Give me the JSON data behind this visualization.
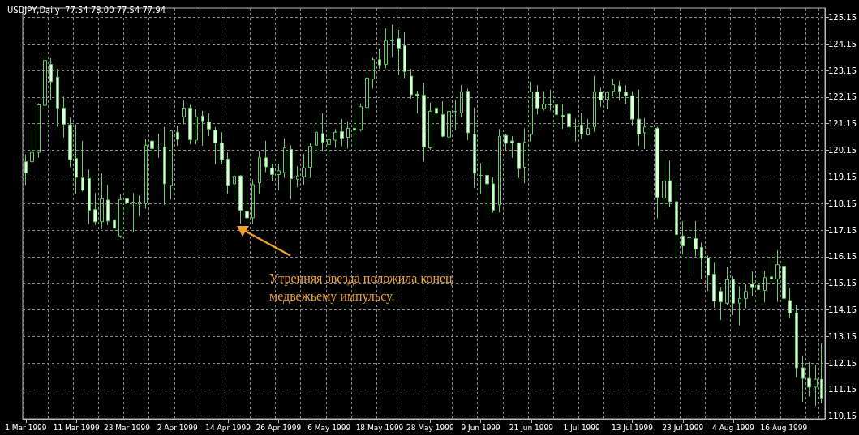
{
  "chart_data": {
    "type": "candlestick",
    "title": "USDJPY,Daily  77.54 78.00 77.54 77.94",
    "color": "#66cc66",
    "grid": true,
    "annotations": [
      "Утренняя звезда положила конец\nмедвежьему импульсу."
    ],
    "ylim": [
      110.05,
      125.5
    ],
    "yticks": [
      110.15,
      111.15,
      112.15,
      113.15,
      114.15,
      115.15,
      116.15,
      117.15,
      118.15,
      119.15,
      120.15,
      121.15,
      122.15,
      123.15,
      124.15,
      125.15
    ],
    "categories": [
      "1 Mar 1999",
      null,
      null,
      null,
      null,
      null,
      null,
      null,
      "11 Mar 1999",
      null,
      null,
      null,
      null,
      null,
      null,
      null,
      "23 Mar 1999",
      null,
      null,
      null,
      null,
      null,
      null,
      null,
      "2 Apr 1999",
      null,
      null,
      null,
      null,
      null,
      null,
      null,
      "14 Apr 1999",
      null,
      null,
      null,
      null,
      null,
      null,
      null,
      "26 Apr 1999",
      null,
      null,
      null,
      null,
      null,
      null,
      null,
      "6 May 1999",
      null,
      null,
      null,
      null,
      null,
      null,
      null,
      "18 May 1999",
      null,
      null,
      null,
      null,
      null,
      null,
      null,
      "28 May 1999",
      null,
      null,
      null,
      null,
      null,
      null,
      null,
      "9 Jun 1999",
      null,
      null,
      null,
      null,
      null,
      null,
      null,
      "21 Jun 1999",
      null,
      null,
      null,
      null,
      null,
      null,
      null,
      "1 Jul 1999",
      null,
      null,
      null,
      null,
      null,
      null,
      null,
      "13 Jul 1999",
      null,
      null,
      null,
      null,
      null,
      null,
      null,
      "23 Jul 1999",
      null,
      null,
      null,
      null,
      null,
      null,
      null,
      "4 Aug 1999",
      null,
      null,
      null,
      null,
      null,
      null,
      null,
      "16 Aug 1999",
      null,
      null,
      null,
      null,
      null,
      null
    ],
    "ohlc": [
      [
        119.72,
        120.0,
        118.85,
        119.3
      ],
      [
        119.72,
        120.93,
        119.7,
        120.07
      ],
      [
        120.07,
        121.92,
        119.87,
        121.86
      ],
      [
        121.84,
        123.82,
        121.76,
        123.53
      ],
      [
        123.38,
        123.64,
        122.05,
        122.73
      ],
      [
        122.9,
        123.21,
        121.03,
        121.74
      ],
      [
        121.74,
        122.17,
        120.63,
        121.13
      ],
      [
        121.11,
        121.39,
        119.51,
        119.8
      ],
      [
        119.84,
        121.13,
        118.5,
        119.13
      ],
      [
        119.11,
        120.51,
        118.6,
        118.65
      ],
      [
        119.09,
        119.43,
        117.37,
        117.9
      ],
      [
        117.92,
        118.55,
        117.34,
        117.46
      ],
      [
        117.46,
        119.29,
        117.19,
        118.32
      ],
      [
        118.28,
        118.86,
        117.34,
        117.49
      ],
      [
        117.52,
        117.84,
        116.83,
        117.22
      ],
      [
        116.93,
        118.5,
        116.86,
        118.3
      ],
      [
        118.33,
        118.93,
        117.77,
        118.18
      ],
      [
        118.2,
        118.55,
        117.08,
        118.2
      ],
      [
        118.13,
        118.45,
        117.66,
        118.2
      ],
      [
        118.17,
        120.58,
        117.95,
        120.34
      ],
      [
        120.5,
        120.58,
        119.54,
        120.22
      ],
      [
        120.27,
        120.78,
        119.87,
        120.27
      ],
      [
        120.27,
        121.03,
        118.1,
        118.89
      ],
      [
        118.83,
        120.93,
        118.3,
        120.88
      ],
      [
        120.83,
        121.08,
        120.32,
        120.56
      ],
      [
        121.41,
        122.04,
        121.13,
        121.74
      ],
      [
        121.74,
        121.86,
        120.37,
        120.55
      ],
      [
        120.53,
        121.69,
        120.37,
        121.41
      ],
      [
        121.44,
        121.64,
        120.32,
        121.26
      ],
      [
        121.21,
        121.54,
        120.68,
        120.95
      ],
      [
        120.91,
        121.03,
        119.62,
        120.43
      ],
      [
        120.43,
        120.83,
        119.62,
        119.8
      ],
      [
        119.82,
        120.07,
        118.5,
        118.83
      ],
      [
        118.89,
        119.51,
        118.28,
        119.18
      ],
      [
        119.19,
        119.21,
        117.39,
        117.9
      ],
      [
        117.85,
        118.55,
        117.44,
        117.61
      ],
      [
        117.61,
        119.06,
        117.37,
        118.86
      ],
      [
        118.93,
        120.12,
        118.5,
        119.87
      ],
      [
        119.87,
        120.51,
        119.33,
        119.53
      ],
      [
        119.48,
        119.64,
        119.01,
        119.24
      ],
      [
        119.24,
        119.64,
        118.65,
        119.38
      ],
      [
        119.31,
        120.61,
        119.11,
        120.24
      ],
      [
        120.19,
        120.34,
        118.3,
        119.08
      ],
      [
        119.06,
        119.56,
        118.76,
        119.19
      ],
      [
        119.16,
        120.02,
        118.86,
        119.49
      ],
      [
        119.51,
        120.43,
        119.11,
        120.3
      ],
      [
        120.34,
        121.36,
        120.12,
        120.83
      ],
      [
        120.78,
        121.54,
        120.1,
        120.45
      ],
      [
        120.37,
        121.13,
        119.77,
        120.55
      ],
      [
        120.53,
        120.95,
        120.24,
        120.83
      ],
      [
        120.85,
        121.32,
        120.3,
        120.61
      ],
      [
        120.64,
        121.24,
        120.22,
        120.98
      ],
      [
        120.98,
        121.64,
        120.15,
        120.91
      ],
      [
        120.93,
        121.92,
        120.85,
        121.79
      ],
      [
        121.76,
        123.0,
        121.49,
        122.87
      ],
      [
        122.83,
        123.66,
        122.47,
        123.56
      ],
      [
        123.56,
        123.97,
        123.21,
        123.36
      ],
      [
        123.38,
        124.73,
        123.24,
        124.29
      ],
      [
        124.29,
        124.87,
        123.66,
        124.28
      ],
      [
        124.35,
        124.68,
        122.98,
        123.99
      ],
      [
        124.09,
        124.59,
        122.86,
        123.11
      ],
      [
        122.94,
        123.21,
        122.09,
        122.24
      ],
      [
        122.26,
        122.39,
        121.54,
        122.21
      ],
      [
        122.22,
        122.69,
        119.72,
        120.27
      ],
      [
        120.24,
        121.94,
        120.17,
        121.62
      ],
      [
        121.74,
        121.96,
        121.24,
        121.54
      ],
      [
        121.49,
        121.99,
        120.65,
        120.68
      ],
      [
        120.65,
        121.76,
        120.32,
        121.62
      ],
      [
        121.61,
        122.04,
        120.91,
        121.61
      ],
      [
        121.56,
        122.6,
        121.39,
        122.35
      ],
      [
        122.37,
        122.47,
        120.53,
        120.81
      ],
      [
        120.75,
        121.76,
        118.73,
        119.29
      ],
      [
        119.21,
        119.67,
        118.5,
        119.21
      ],
      [
        119.21,
        119.94,
        117.59,
        118.89
      ],
      [
        118.89,
        119.16,
        117.81,
        117.9
      ],
      [
        118.1,
        120.95,
        117.81,
        120.68
      ],
      [
        120.71,
        120.78,
        120.12,
        120.41
      ],
      [
        120.5,
        120.68,
        119.87,
        120.43
      ],
      [
        120.43,
        120.45,
        119.11,
        119.46
      ],
      [
        119.51,
        120.98,
        118.91,
        120.45
      ],
      [
        120.75,
        122.73,
        120.48,
        122.35
      ],
      [
        122.35,
        122.6,
        121.49,
        121.74
      ],
      [
        121.72,
        122.37,
        121.64,
        121.89
      ],
      [
        121.86,
        122.42,
        121.64,
        121.86
      ],
      [
        121.86,
        122.23,
        121.03,
        121.49
      ],
      [
        121.46,
        121.89,
        120.95,
        121.42
      ],
      [
        121.51,
        121.66,
        120.71,
        121.03
      ],
      [
        121.05,
        121.34,
        120.48,
        121.05
      ],
      [
        121.1,
        121.56,
        120.58,
        120.76
      ],
      [
        120.73,
        121.32,
        120.71,
        120.98
      ],
      [
        121.03,
        122.94,
        120.85,
        122.35
      ],
      [
        122.35,
        122.5,
        121.79,
        122.04
      ],
      [
        122.06,
        122.37,
        121.69,
        122.33
      ],
      [
        122.37,
        122.83,
        122.17,
        122.62
      ],
      [
        122.57,
        122.77,
        122.02,
        122.37
      ],
      [
        122.33,
        122.6,
        121.89,
        122.2
      ],
      [
        122.2,
        122.37,
        121.08,
        121.32
      ],
      [
        121.32,
        122.43,
        120.32,
        120.76
      ],
      [
        120.81,
        121.36,
        120.2,
        121.03
      ],
      [
        121.03,
        121.18,
        120.4,
        121.03
      ],
      [
        120.98,
        121.03,
        117.59,
        118.38
      ],
      [
        118.35,
        119.82,
        117.87,
        118.99
      ],
      [
        119.01,
        119.77,
        118.02,
        118.22
      ],
      [
        118.22,
        118.86,
        116.07,
        116.98
      ],
      [
        116.93,
        117.49,
        116.23,
        116.55
      ],
      [
        116.86,
        117.19,
        115.42,
        116.86
      ],
      [
        116.83,
        117.49,
        116.15,
        116.43
      ],
      [
        116.5,
        116.68,
        115.32,
        116.09
      ],
      [
        116.09,
        116.19,
        114.86,
        115.45
      ],
      [
        115.49,
        115.92,
        114.23,
        114.48
      ],
      [
        114.84,
        115.01,
        113.77,
        114.45
      ],
      [
        114.4,
        115.77,
        114.33,
        115.28
      ],
      [
        115.28,
        115.41,
        113.95,
        114.4
      ],
      [
        114.4,
        115.04,
        113.56,
        114.58
      ],
      [
        114.58,
        115.11,
        114.21,
        114.84
      ],
      [
        115.11,
        115.59,
        114.66,
        115.01
      ],
      [
        115.08,
        115.52,
        114.3,
        114.91
      ],
      [
        114.88,
        115.62,
        114.43,
        115.36
      ],
      [
        115.39,
        116.17,
        115.11,
        115.31
      ],
      [
        115.31,
        116.39,
        114.45,
        115.85
      ],
      [
        115.79,
        115.99,
        114.45,
        114.58
      ],
      [
        114.5,
        114.98,
        113.85,
        114.03
      ],
      [
        114.03,
        114.35,
        111.6,
        111.97
      ],
      [
        111.97,
        112.41,
        110.69,
        111.57
      ],
      [
        111.57,
        112.18,
        110.89,
        111.24
      ],
      [
        111.24,
        112.08,
        110.53,
        111.54
      ],
      [
        111.54,
        112.88,
        110.63,
        110.83
      ]
    ]
  }
}
